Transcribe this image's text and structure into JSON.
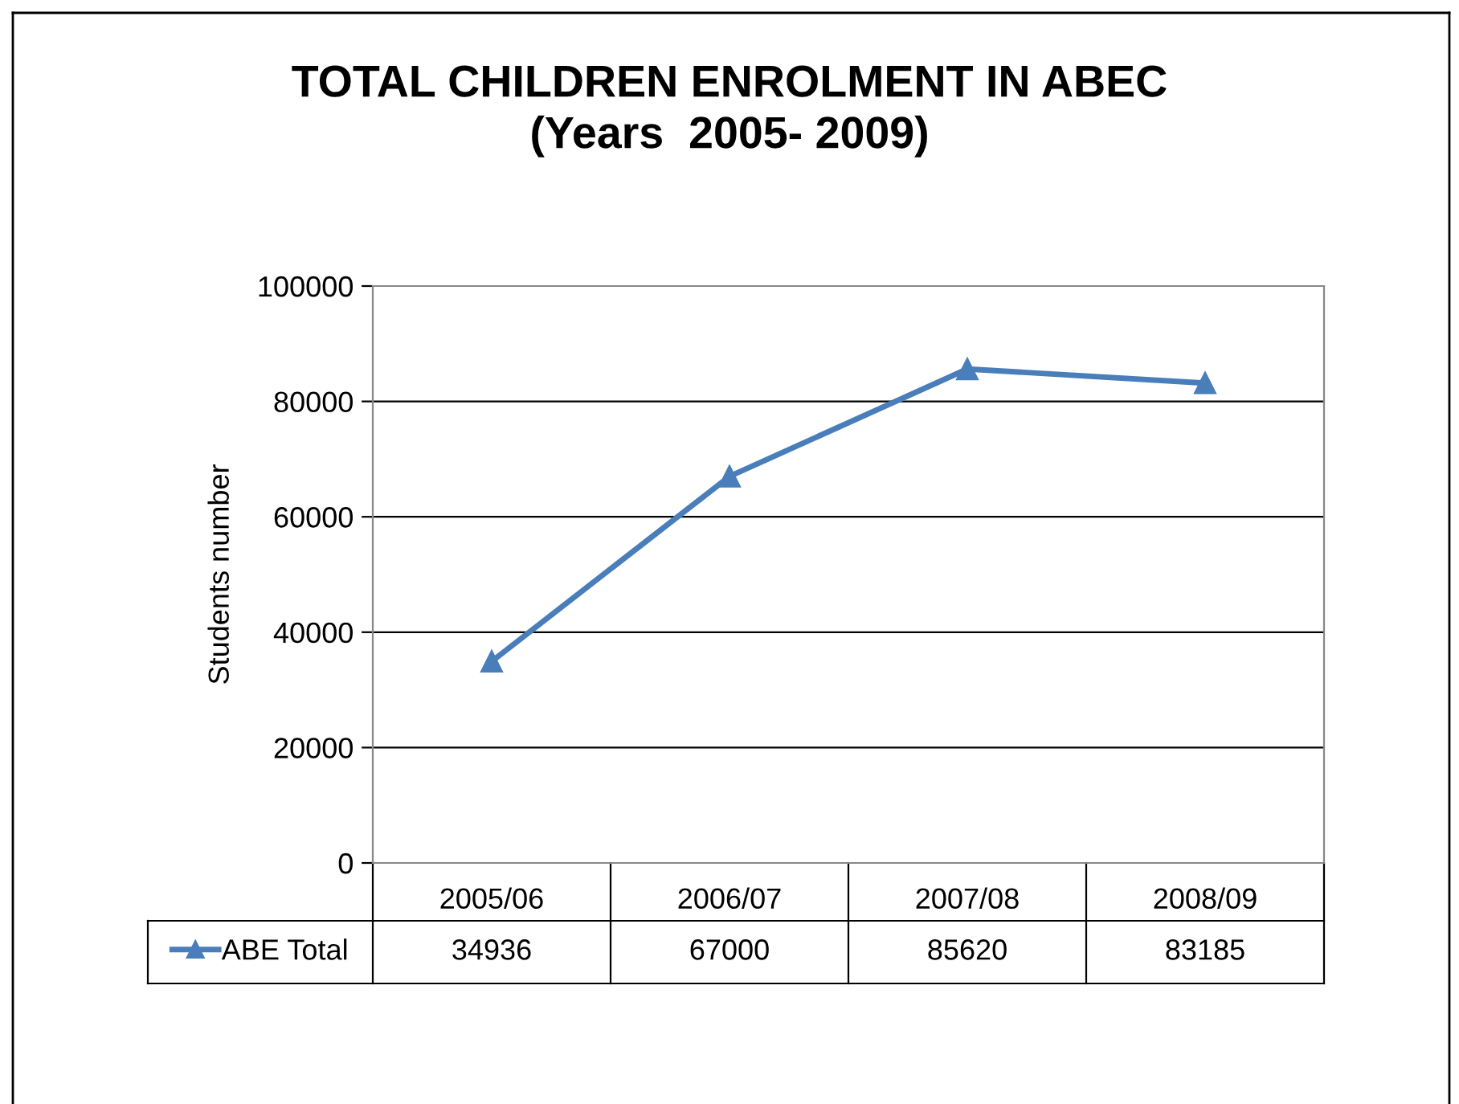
{
  "chart_data": {
    "type": "line",
    "title": "TOTAL CHILDREN ENROLMENT IN ABEC\n(Years  2005- 2009)",
    "ylabel": "Students number",
    "categories": [
      "2005/06",
      "2006/07",
      "2007/08",
      "2008/09"
    ],
    "series": [
      {
        "name": "ABE Total",
        "color": "#4a7ebb",
        "values": [
          34936,
          67000,
          85620,
          83185
        ]
      }
    ],
    "ylim": [
      0,
      100000
    ],
    "yticks": [
      0,
      20000,
      40000,
      60000,
      80000,
      100000
    ],
    "grid": "y",
    "marker": "triangle",
    "line_style": "solid",
    "legend": "bottom left",
    "data_labels": true
  }
}
